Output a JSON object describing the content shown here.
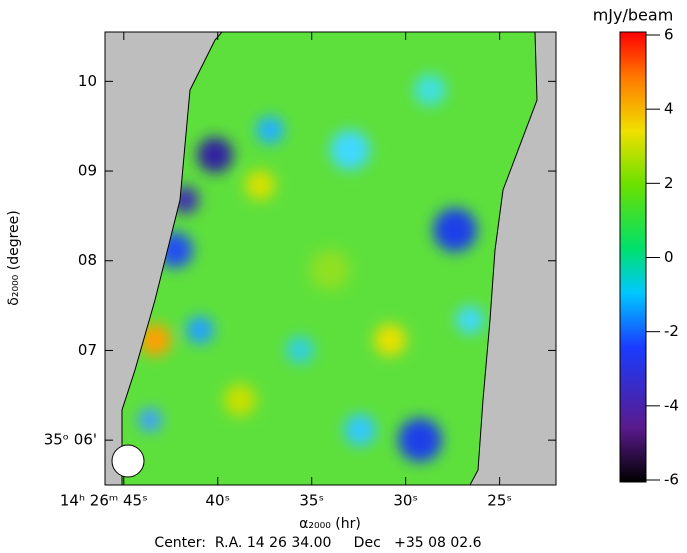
{
  "chart_data": {
    "type": "sky-map",
    "x_label": "α₂₀₀₀ (hr)",
    "y_label": "δ₂₀₀₀ (degree)",
    "xlim": [
      46,
      22
    ],
    "xticks": [
      {
        "value": 45,
        "label": "14ʰ 26ᵐ 45ˢ"
      },
      {
        "value": 40,
        "label": "40ˢ"
      },
      {
        "value": 35,
        "label": "35ˢ"
      },
      {
        "value": 30,
        "label": "30ˢ"
      },
      {
        "value": 25,
        "label": "25ˢ"
      }
    ],
    "ylim": [
      5.5,
      10.55
    ],
    "yticks": [
      10,
      {
        "value": 9,
        "label": "09"
      },
      {
        "value": 8,
        "label": "08"
      },
      {
        "value": 7,
        "label": "07"
      },
      {
        "value": 6,
        "label": "35ᵒ 06'"
      }
    ],
    "colorbar_label": "mJy/beam",
    "zlim": [
      -6,
      6
    ],
    "zticks": [
      -6,
      -4,
      -2,
      0,
      2,
      4,
      6
    ],
    "footer": "Center:  R.A. 14 26 34.00     Dec   +35 08 02.6"
  }
}
